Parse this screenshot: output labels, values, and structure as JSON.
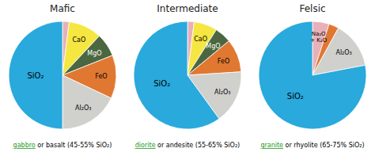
{
  "chart_data": [
    {
      "type": "pie",
      "title": "Mafic",
      "categories": [
        null,
        "CaO",
        "MgO",
        "FeO",
        "Al₂O₃",
        "SiO₂"
      ],
      "values": [
        2,
        10,
        7,
        13,
        18,
        50
      ],
      "colors": [
        "#e8b0b8",
        "#f5e642",
        "#4a6741",
        "#e07832",
        "#d0d0cc",
        "#29a9dc"
      ],
      "annotations": [
        {
          "text": "gabbro",
          "color": "#229922"
        },
        {
          "text": " or basalt (45-55% SiO₂)",
          "color": "black"
        }
      ]
    },
    {
      "type": "pie",
      "title": "Intermediate",
      "categories": [
        null,
        "CaO",
        "MgO",
        "FeO",
        "Al₂O₃",
        "SiO₂"
      ],
      "values": [
        2,
        7,
        5,
        10,
        16,
        60
      ],
      "colors": [
        "#e8b0b8",
        "#f5e642",
        "#4a6741",
        "#e07832",
        "#d0d0cc",
        "#29a9dc"
      ],
      "annotations": [
        {
          "text": "diorite",
          "color": "#229922"
        },
        {
          "text": " or andesite (55-65% SiO₂)",
          "color": "black"
        }
      ]
    },
    {
      "type": "pie",
      "title": "Felsic",
      "categories": [
        "Na₂O\n+ K₂O",
        null,
        "Al₂O₃",
        "SiO₂"
      ],
      "values": [
        5,
        3,
        14,
        78
      ],
      "colors": [
        "#e8b0b8",
        "#e07832",
        "#d0d0cc",
        "#29a9dc"
      ],
      "annotations": [
        {
          "text": "granite",
          "color": "#229922"
        },
        {
          "text": " or rhyolite (65-75% SiO₂)",
          "color": "black"
        }
      ]
    }
  ]
}
